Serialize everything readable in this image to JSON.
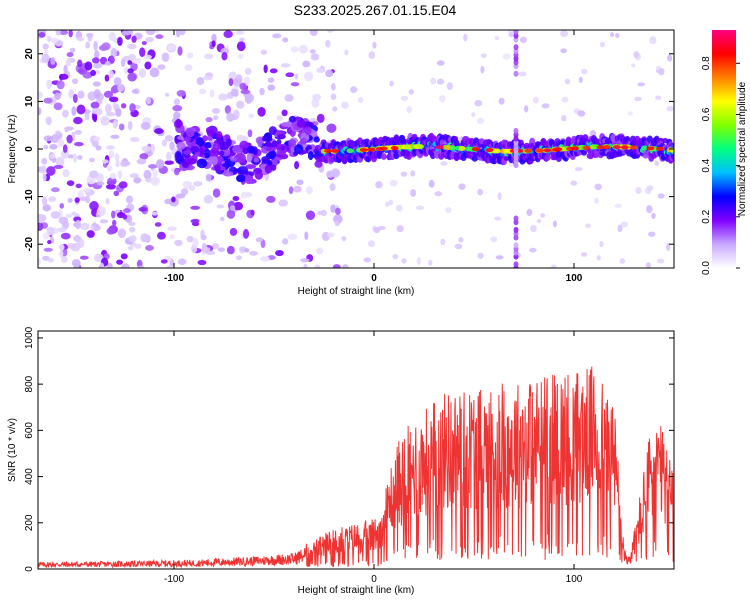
{
  "title": "S233.2025.267.01.15.E04",
  "chart_data": [
    {
      "type": "heatmap",
      "xlabel": "Height of straight line (km)",
      "ylabel": "Frequency (Hz)",
      "xlim": [
        -168,
        150
      ],
      "ylim": [
        -25,
        25
      ],
      "xticks": [
        -100,
        0,
        100
      ],
      "yticks": [
        -20,
        -10,
        0,
        10,
        20
      ],
      "colorbar": {
        "label": "Normalized spectral amplitude",
        "range": [
          0,
          0.93
        ],
        "ticks": [
          0.0,
          0.2,
          0.4,
          0.6,
          0.8
        ],
        "colormap": [
          "#ffffff",
          "#c8a8ff",
          "#8000ff",
          "#0000ff",
          "#00c0ff",
          "#00ff80",
          "#80ff00",
          "#ffff00",
          "#ff8000",
          "#ff0000",
          "#ff0080"
        ]
      },
      "features": {
        "main_band_frequency_hz": 0,
        "band_start_km": -28,
        "transient_km": 71
      }
    },
    {
      "type": "line",
      "xlabel": "Height of straight line (km)",
      "ylabel": "SNR (10 * v/v)",
      "xlim": [
        -168,
        150
      ],
      "ylim": [
        0,
        1030
      ],
      "xticks": [
        -100,
        0,
        100
      ],
      "yticks": [
        0,
        200,
        400,
        600,
        800,
        1000
      ],
      "color": "#ee3333",
      "envelope_x": [
        -168,
        -120,
        -90,
        -60,
        -40,
        -30,
        -20,
        0,
        5,
        10,
        20,
        35,
        50,
        70,
        90,
        110,
        120,
        125,
        128,
        132,
        140,
        150
      ],
      "envelope_y": [
        30,
        35,
        40,
        55,
        70,
        120,
        160,
        200,
        280,
        480,
        600,
        700,
        720,
        740,
        780,
        800,
        680,
        100,
        50,
        250,
        650,
        400
      ]
    }
  ]
}
